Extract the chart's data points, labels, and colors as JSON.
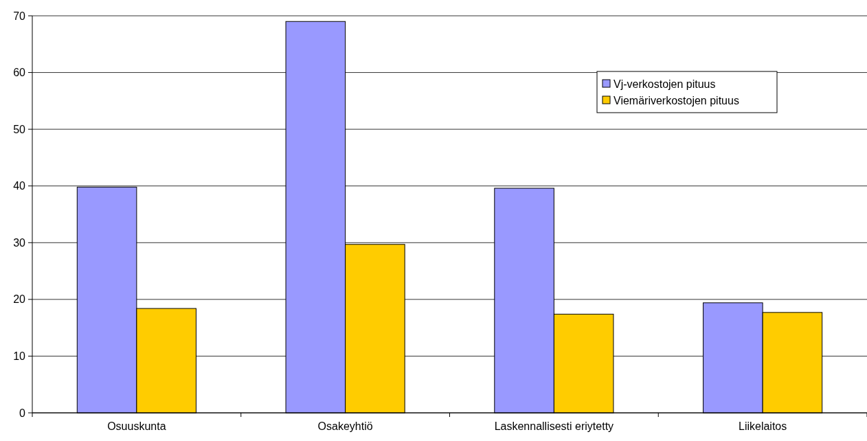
{
  "chart_data": {
    "type": "bar",
    "categories": [
      "Osuuskunta",
      "Osakeyhtiö",
      "Laskennallisesti eriytetty",
      "Liikelaitos"
    ],
    "series": [
      {
        "name": "Vj-verkostojen pituus",
        "color": "#9999ff",
        "values": [
          39.8,
          69.0,
          39.6,
          19.4
        ]
      },
      {
        "name": "Viemäriverkostojen pituus",
        "color": "#ffcc00",
        "values": [
          18.4,
          29.7,
          17.4,
          17.7
        ]
      }
    ],
    "ylim": [
      0,
      70
    ],
    "yticks": [
      0,
      10,
      20,
      30,
      40,
      50,
      60,
      70
    ],
    "grid": "y",
    "legend": "top right"
  }
}
